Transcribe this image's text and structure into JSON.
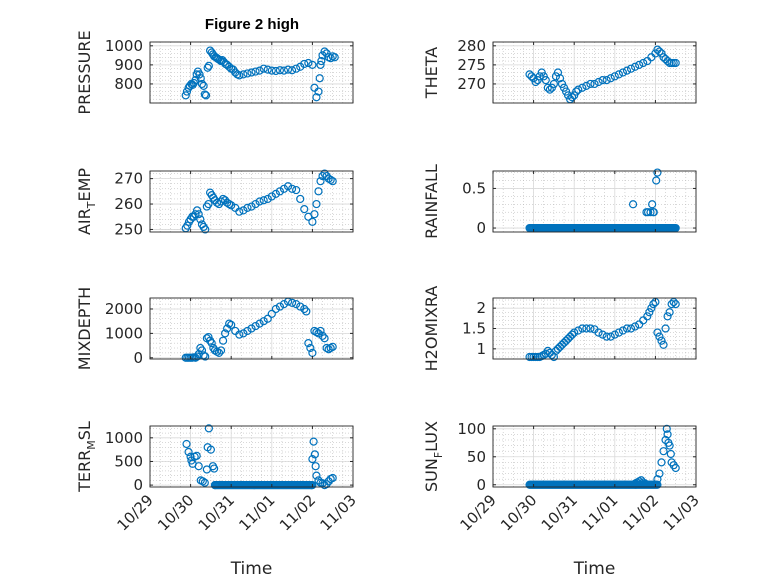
{
  "figure_title": "Figure 2 high",
  "colors": {
    "marker": "#0072BD",
    "axis": "#262626",
    "grid": "#b0b0b0",
    "background": "#ffffff"
  },
  "chart_data": [
    {
      "type": "scatter",
      "ylabel": {
        "main": "PRESSURE"
      },
      "xlabel": "",
      "xlim": [
        0,
        5
      ],
      "ylim": [
        700,
        1020
      ],
      "yticks": [
        800,
        900,
        1000
      ],
      "ytick_labels": [
        "800",
        "900",
        "1000"
      ],
      "xticks": [
        0,
        1,
        2,
        3,
        4,
        5
      ],
      "xtick_labels": [
        "10/29",
        "10/30",
        "10/31",
        "11/01",
        "11/02",
        "11/03"
      ],
      "grid": true,
      "x": [
        0.88,
        0.91,
        0.95,
        0.98,
        1.02,
        1.05,
        1.08,
        1.12,
        1.15,
        1.18,
        1.22,
        1.25,
        1.28,
        1.32,
        1.35,
        1.38,
        1.42,
        1.45,
        1.48,
        1.52,
        1.55,
        1.58,
        1.62,
        1.65,
        1.68,
        1.72,
        1.75,
        1.78,
        1.82,
        1.86,
        1.9,
        1.95,
        2.0,
        2.05,
        2.1,
        2.15,
        2.2,
        2.3,
        2.4,
        2.5,
        2.6,
        2.7,
        2.8,
        2.9,
        3.0,
        3.1,
        3.2,
        3.3,
        3.4,
        3.5,
        3.6,
        3.7,
        3.8,
        3.9,
        4.0,
        4.05,
        4.1,
        4.15,
        4.18,
        4.2,
        4.22,
        4.25,
        4.3,
        4.35,
        4.4,
        4.45,
        4.5,
        4.55
      ],
      "y": [
        740,
        760,
        780,
        790,
        800,
        795,
        805,
        820,
        850,
        865,
        850,
        830,
        800,
        790,
        745,
        740,
        885,
        895,
        975,
        965,
        955,
        945,
        940,
        935,
        930,
        925,
        920,
        925,
        915,
        905,
        900,
        890,
        880,
        875,
        860,
        850,
        845,
        850,
        855,
        860,
        865,
        870,
        880,
        875,
        870,
        868,
        872,
        870,
        875,
        872,
        880,
        890,
        905,
        910,
        900,
        780,
        730,
        760,
        830,
        900,
        920,
        950,
        970,
        960,
        940,
        935,
        945,
        940
      ]
    },
    {
      "type": "scatter",
      "ylabel": {
        "main": "THETA"
      },
      "xlabel": "",
      "xlim": [
        0,
        5
      ],
      "ylim": [
        265,
        281
      ],
      "yticks": [
        270,
        275,
        280
      ],
      "ytick_labels": [
        "270",
        "275",
        "280"
      ],
      "xticks": [
        0,
        1,
        2,
        3,
        4,
        5
      ],
      "xtick_labels": [
        "10/29",
        "10/30",
        "10/31",
        "11/01",
        "11/02",
        "11/03"
      ],
      "grid": true,
      "x": [
        0.9,
        0.95,
        1.0,
        1.05,
        1.1,
        1.15,
        1.2,
        1.25,
        1.3,
        1.35,
        1.4,
        1.45,
        1.5,
        1.55,
        1.6,
        1.65,
        1.7,
        1.75,
        1.8,
        1.85,
        1.9,
        1.95,
        2.0,
        2.05,
        2.1,
        2.2,
        2.3,
        2.4,
        2.5,
        2.6,
        2.7,
        2.8,
        2.9,
        3.0,
        3.1,
        3.2,
        3.3,
        3.4,
        3.5,
        3.6,
        3.7,
        3.8,
        3.9,
        4.0,
        4.05,
        4.1,
        4.15,
        4.2,
        4.25,
        4.3,
        4.35,
        4.4,
        4.45,
        4.5
      ],
      "y": [
        272.5,
        272,
        271.5,
        270.5,
        271,
        272,
        273,
        272,
        271,
        269,
        268.5,
        269,
        270,
        272,
        273,
        271.5,
        270,
        269,
        268,
        267,
        266,
        266.5,
        267,
        268,
        268.5,
        269,
        269.5,
        270,
        270,
        270.5,
        271,
        271,
        271.5,
        272,
        272.5,
        273,
        273.5,
        274,
        274.5,
        275,
        275.5,
        276,
        277,
        278,
        279,
        278.5,
        278,
        277,
        276.5,
        276,
        275.5,
        275.5,
        275.5,
        275.5
      ]
    },
    {
      "type": "scatter",
      "ylabel": {
        "main": "AIR",
        "sub": "T",
        "rest": "EMP"
      },
      "xlabel": "",
      "xlim": [
        0,
        5
      ],
      "ylim": [
        249,
        273
      ],
      "yticks": [
        250,
        260,
        270
      ],
      "ytick_labels": [
        "250",
        "260",
        "270"
      ],
      "xticks": [
        0,
        1,
        2,
        3,
        4,
        5
      ],
      "xtick_labels": [
        "10/29",
        "10/30",
        "10/31",
        "11/01",
        "11/02",
        "11/03"
      ],
      "grid": true,
      "x": [
        0.88,
        0.92,
        0.96,
        1.0,
        1.04,
        1.08,
        1.12,
        1.16,
        1.2,
        1.24,
        1.28,
        1.32,
        1.36,
        1.4,
        1.44,
        1.48,
        1.52,
        1.56,
        1.6,
        1.65,
        1.7,
        1.75,
        1.8,
        1.85,
        1.9,
        1.95,
        2.0,
        2.1,
        2.2,
        2.3,
        2.4,
        2.5,
        2.6,
        2.7,
        2.8,
        2.9,
        3.0,
        3.1,
        3.2,
        3.3,
        3.4,
        3.5,
        3.6,
        3.7,
        3.8,
        3.9,
        4.0,
        4.05,
        4.1,
        4.15,
        4.2,
        4.25,
        4.3,
        4.35,
        4.4,
        4.45,
        4.5
      ],
      "y": [
        250.5,
        251.5,
        253,
        254,
        255,
        255,
        256,
        257.5,
        256,
        254,
        252,
        251,
        250,
        259,
        260,
        264.5,
        263.5,
        262.5,
        261.5,
        260.5,
        260,
        261,
        262,
        261.5,
        260.5,
        260,
        259.5,
        258.5,
        257,
        257.5,
        258.5,
        259,
        260,
        261,
        261.5,
        262,
        263,
        264,
        265,
        266,
        267,
        266,
        265.5,
        262,
        258,
        255,
        253,
        256,
        260,
        265,
        269,
        271,
        272,
        271,
        270,
        269.5,
        269
      ]
    },
    {
      "type": "scatter",
      "ylabel": {
        "main": "RAINFALL"
      },
      "xlabel": "",
      "xlim": [
        0,
        5
      ],
      "ylim": [
        -0.05,
        0.72
      ],
      "yticks": [
        0,
        0.5
      ],
      "ytick_labels": [
        "0",
        "0.5"
      ],
      "xticks": [
        0,
        1,
        2,
        3,
        4,
        5
      ],
      "xtick_labels": [
        "10/29",
        "10/30",
        "10/31",
        "11/01",
        "11/02",
        "11/03"
      ],
      "grid": true,
      "line_y0_from": 0.9,
      "line_y0_to": 4.5,
      "x": [
        3.45,
        3.78,
        3.82,
        3.88,
        3.92,
        3.95,
        3.96,
        4.02,
        4.05
      ],
      "y": [
        0.3,
        0.2,
        0.2,
        0.2,
        0.3,
        0.2,
        0.2,
        0.6,
        0.7
      ]
    },
    {
      "type": "scatter",
      "ylabel": {
        "main": "MIXDEPTH"
      },
      "xlabel": "",
      "xlim": [
        0,
        5
      ],
      "ylim": [
        -50,
        2450
      ],
      "yticks": [
        0,
        1000,
        2000
      ],
      "ytick_labels": [
        "0",
        "1000",
        "2000"
      ],
      "xticks": [
        0,
        1,
        2,
        3,
        4,
        5
      ],
      "xtick_labels": [
        "10/29",
        "10/30",
        "10/31",
        "11/01",
        "11/02",
        "11/03"
      ],
      "grid": true,
      "x": [
        0.88,
        0.92,
        0.96,
        1.0,
        1.04,
        1.08,
        1.12,
        1.16,
        1.2,
        1.24,
        1.28,
        1.32,
        1.36,
        1.4,
        1.44,
        1.48,
        1.52,
        1.56,
        1.6,
        1.65,
        1.7,
        1.75,
        1.8,
        1.85,
        1.9,
        1.95,
        2.0,
        2.1,
        2.2,
        2.3,
        2.4,
        2.5,
        2.6,
        2.7,
        2.8,
        2.9,
        3.0,
        3.1,
        3.2,
        3.3,
        3.4,
        3.5,
        3.6,
        3.7,
        3.8,
        3.85,
        3.9,
        3.95,
        4.0,
        4.05,
        4.1,
        4.15,
        4.2,
        4.25,
        4.3,
        4.35,
        4.4,
        4.45,
        4.5
      ],
      "y": [
        0,
        0,
        0,
        0,
        0,
        20,
        0,
        50,
        150,
        400,
        300,
        100,
        50,
        800,
        850,
        700,
        600,
        400,
        300,
        250,
        200,
        300,
        700,
        1000,
        1200,
        1400,
        1350,
        1100,
        950,
        1000,
        1100,
        1200,
        1300,
        1400,
        1500,
        1600,
        1800,
        2000,
        2100,
        2200,
        2300,
        2250,
        2200,
        2100,
        2000,
        1900,
        600,
        400,
        200,
        1100,
        1050,
        1000,
        1100,
        900,
        800,
        400,
        350,
        400,
        450
      ]
    },
    {
      "type": "scatter",
      "ylabel": {
        "main": "H2OMIXRA"
      },
      "xlabel": "",
      "xlim": [
        0,
        5
      ],
      "ylim": [
        0.75,
        2.25
      ],
      "yticks": [
        1,
        1.5,
        2
      ],
      "ytick_labels": [
        "1",
        "1.5",
        "2"
      ],
      "xticks": [
        0,
        1,
        2,
        3,
        4,
        5
      ],
      "xtick_labels": [
        "10/29",
        "10/30",
        "10/31",
        "11/01",
        "11/02",
        "11/03"
      ],
      "grid": true,
      "x": [
        0.9,
        0.95,
        1.0,
        1.05,
        1.1,
        1.15,
        1.2,
        1.25,
        1.3,
        1.35,
        1.4,
        1.45,
        1.5,
        1.55,
        1.6,
        1.65,
        1.7,
        1.75,
        1.8,
        1.85,
        1.9,
        1.95,
        2.0,
        2.1,
        2.2,
        2.3,
        2.4,
        2.5,
        2.6,
        2.7,
        2.8,
        2.9,
        3.0,
        3.1,
        3.2,
        3.3,
        3.4,
        3.5,
        3.6,
        3.7,
        3.8,
        3.85,
        3.9,
        3.95,
        4.0,
        4.05,
        4.1,
        4.15,
        4.2,
        4.25,
        4.3,
        4.35,
        4.4,
        4.45,
        4.5
      ],
      "y": [
        0.8,
        0.8,
        0.8,
        0.8,
        0.8,
        0.8,
        0.82,
        0.85,
        0.88,
        0.95,
        0.9,
        0.85,
        0.8,
        0.95,
        1.0,
        1.05,
        1.1,
        1.15,
        1.2,
        1.25,
        1.3,
        1.35,
        1.4,
        1.45,
        1.5,
        1.5,
        1.5,
        1.48,
        1.4,
        1.35,
        1.3,
        1.3,
        1.35,
        1.4,
        1.45,
        1.5,
        1.5,
        1.55,
        1.6,
        1.7,
        1.8,
        1.9,
        2.0,
        2.1,
        2.15,
        1.4,
        1.3,
        1.2,
        1.1,
        1.5,
        1.8,
        1.9,
        2.1,
        2.15,
        2.1
      ]
    },
    {
      "type": "scatter",
      "ylabel": {
        "main": "TERR",
        "sub": "M",
        "rest": "SL"
      },
      "xlabel": "Time",
      "xlim": [
        0,
        5
      ],
      "ylim": [
        -40,
        1250
      ],
      "yticks": [
        0,
        500,
        1000
      ],
      "ytick_labels": [
        "0",
        "500",
        "1000"
      ],
      "xticks": [
        0,
        1,
        2,
        3,
        4,
        5
      ],
      "xtick_labels": [
        "10/29",
        "10/30",
        "10/31",
        "11/01",
        "11/02",
        "11/03"
      ],
      "grid": true,
      "line_y0_from": 1.6,
      "line_y0_to": 4.0,
      "x": [
        0.9,
        0.95,
        1.0,
        1.02,
        1.05,
        1.1,
        1.15,
        1.2,
        1.25,
        1.3,
        1.35,
        1.4,
        1.42,
        1.45,
        1.5,
        1.55,
        1.58,
        1.6,
        3.98,
        4.0,
        4.03,
        4.06,
        4.08,
        4.1,
        4.15,
        4.2,
        4.25,
        4.3,
        4.35,
        4.4,
        4.45,
        4.5
      ],
      "y": [
        870,
        700,
        600,
        520,
        450,
        600,
        620,
        400,
        100,
        80,
        50,
        330,
        800,
        1200,
        750,
        400,
        350,
        0,
        0,
        550,
        920,
        650,
        400,
        200,
        100,
        50,
        40,
        0,
        20,
        80,
        130,
        150
      ]
    },
    {
      "type": "scatter",
      "ylabel": {
        "main": "SUN",
        "sub": "F",
        "rest": "LUX"
      },
      "xlabel": "Time",
      "xlim": [
        0,
        5
      ],
      "ylim": [
        -4,
        105
      ],
      "yticks": [
        0,
        50,
        100
      ],
      "ytick_labels": [
        "0",
        "50",
        "100"
      ],
      "xticks": [
        0,
        1,
        2,
        3,
        4,
        5
      ],
      "xtick_labels": [
        "10/29",
        "10/30",
        "10/31",
        "11/01",
        "11/02",
        "11/03"
      ],
      "grid": true,
      "line_y0_from": 0.9,
      "line_y0_to": 4.05,
      "x": [
        3.5,
        3.55,
        3.6,
        3.65,
        3.7,
        3.75,
        4.05,
        4.1,
        4.15,
        4.2,
        4.25,
        4.28,
        4.3,
        4.32,
        4.35,
        4.38,
        4.4,
        4.45,
        4.5
      ],
      "y": [
        2,
        4,
        6,
        8,
        4,
        2,
        10,
        20,
        40,
        60,
        80,
        100,
        90,
        75,
        70,
        55,
        40,
        35,
        30
      ]
    }
  ]
}
